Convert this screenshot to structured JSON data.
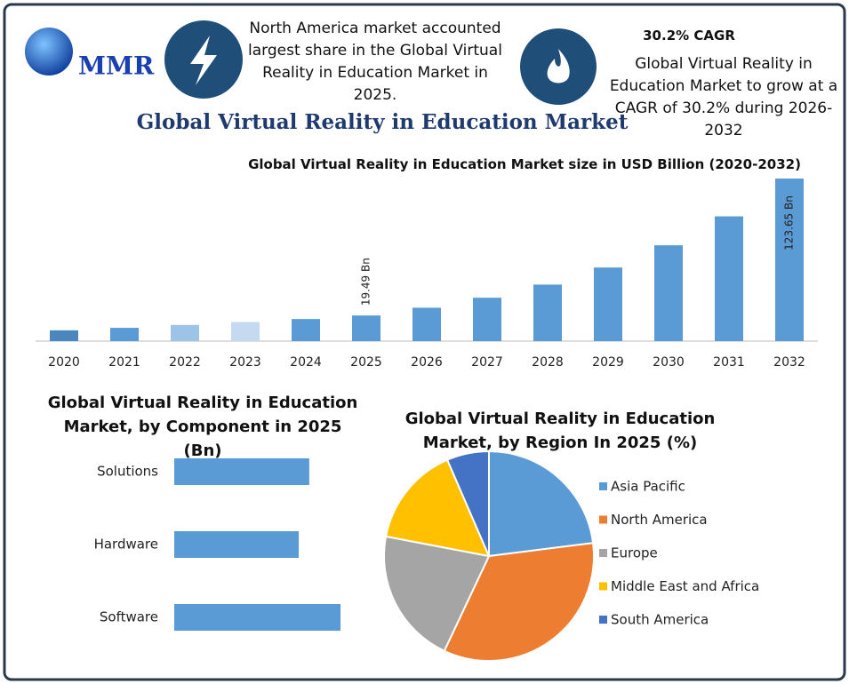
{
  "header": {
    "logo": "MMR",
    "note": "North America market accounted largest share in the Global Virtual Reality in Education Market in 2025.",
    "cagr_title": "30.2% CAGR",
    "cagr_text": "Global Virtual Reality in Education Market to grow at a CAGR of 30.2% during 2026-2032",
    "title": "Global Virtual Reality in Education Market"
  },
  "chart_data": [
    {
      "type": "bar",
      "title": "Global Virtual Reality in Education Market size in USD Billion (2020-2032)",
      "categories": [
        "2020",
        "2021",
        "2022",
        "2023",
        "2024",
        "2025",
        "2026",
        "2027",
        "2028",
        "2029",
        "2030",
        "2031",
        "2032"
      ],
      "values": [
        8.2,
        10.1,
        12.3,
        14.5,
        16.8,
        19.49,
        25.4,
        33.0,
        43.0,
        56.0,
        72.9,
        94.9,
        123.65
      ],
      "value_labels": [
        null,
        null,
        null,
        null,
        null,
        "19.49 Bn",
        null,
        null,
        null,
        null,
        null,
        null,
        "123.65 Bn"
      ],
      "colors": [
        "#4a86c0",
        "#5b9bd5",
        "#9dc3e6",
        "#c5d9f0",
        "#5b9bd5",
        "#5b9bd5",
        "#5b9bd5",
        "#5b9bd5",
        "#5b9bd5",
        "#5b9bd5",
        "#5b9bd5",
        "#5b9bd5",
        "#5b9bd5"
      ]
    },
    {
      "type": "hbar",
      "title": "Global Virtual Reality in Education Market, by Component in 2025 (Bn)",
      "categories": [
        "Solutions",
        "Hardware",
        "Software"
      ],
      "values": [
        6.18,
        5.7,
        7.61
      ],
      "color": "#5b9bd5"
    },
    {
      "type": "pie",
      "title": "Global Virtual Reality in Education Market, by Region In 2025 (%)",
      "categories": [
        "Asia Pacific",
        "North America",
        "Europe",
        "Middle East and Africa",
        "South America"
      ],
      "values": [
        23,
        34,
        21,
        15.5,
        6.5
      ],
      "colors": [
        "#5b9bd5",
        "#ed7d31",
        "#a5a5a5",
        "#ffc000",
        "#4472c4"
      ]
    }
  ]
}
